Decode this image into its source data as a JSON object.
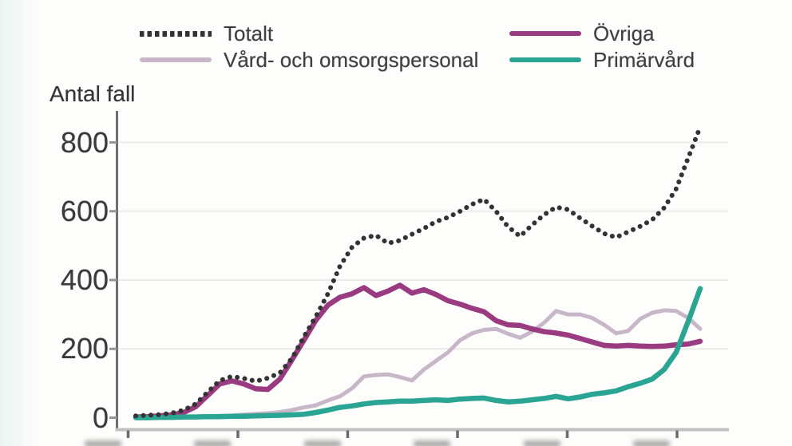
{
  "page": {
    "background": "#fdfdfb"
  },
  "legend": {
    "items": [
      {
        "label": "Totalt",
        "color": "#333333",
        "style": "dotted"
      },
      {
        "label": "Vård- och omsorgspersonal",
        "color": "#c7b7c9",
        "style": "solid"
      },
      {
        "label": "Övriga",
        "color": "#9a3a80",
        "style": "solid"
      },
      {
        "label": "Primärvård",
        "color": "#2aa493",
        "style": "solid"
      }
    ]
  },
  "axis": {
    "title": "Antal fall",
    "ytick_labels": [
      "800",
      "600",
      "400",
      "200",
      "0"
    ]
  },
  "chart_data": {
    "type": "line",
    "title": "Antal fall",
    "xlabel": "",
    "ylabel": "Antal fall",
    "ylim": [
      0,
      870
    ],
    "yticks": [
      0,
      200,
      400,
      600,
      800
    ],
    "grid": "horizontal",
    "legend_position": "top",
    "x_axis_note": "x tick labels cropped out of visible screenshot; 6 evenly spaced ticks shown",
    "series": [
      {
        "name": "Totalt",
        "color": "#333333",
        "line_style": "dotted",
        "values": [
          5,
          7,
          9,
          13,
          22,
          40,
          75,
          108,
          120,
          114,
          106,
          115,
          130,
          172,
          235,
          294,
          360,
          440,
          495,
          522,
          530,
          507,
          515,
          533,
          550,
          570,
          582,
          600,
          620,
          635,
          600,
          555,
          527,
          560,
          590,
          612,
          605,
          580,
          557,
          535,
          524,
          540,
          556,
          575,
          610,
          665,
          755,
          845
        ]
      },
      {
        "name": "Vård- och omsorgspersonal",
        "color": "#c7b7c9",
        "line_style": "solid",
        "values": [
          0,
          1,
          1,
          2,
          2,
          3,
          4,
          5,
          6,
          9,
          11,
          13,
          16,
          22,
          30,
          36,
          50,
          62,
          85,
          120,
          124,
          126,
          118,
          108,
          140,
          165,
          190,
          225,
          245,
          255,
          258,
          244,
          232,
          250,
          276,
          310,
          300,
          300,
          290,
          270,
          245,
          252,
          287,
          305,
          312,
          310,
          290,
          258
        ]
      },
      {
        "name": "Övriga",
        "color": "#9a3a80",
        "line_style": "solid",
        "values": [
          2,
          3,
          5,
          8,
          15,
          32,
          65,
          98,
          107,
          98,
          84,
          82,
          112,
          168,
          225,
          283,
          327,
          350,
          360,
          378,
          355,
          368,
          385,
          362,
          372,
          358,
          340,
          330,
          318,
          308,
          282,
          270,
          268,
          258,
          250,
          246,
          240,
          230,
          220,
          210,
          208,
          210,
          208,
          207,
          208,
          212,
          214,
          222
        ]
      },
      {
        "name": "Primärvård",
        "color": "#2aa493",
        "line_style": "solid",
        "values": [
          0,
          0,
          1,
          1,
          2,
          2,
          3,
          3,
          4,
          4,
          5,
          6,
          7,
          8,
          10,
          15,
          22,
          30,
          34,
          40,
          44,
          46,
          48,
          48,
          50,
          52,
          50,
          54,
          56,
          57,
          50,
          46,
          48,
          52,
          56,
          62,
          55,
          60,
          68,
          72,
          78,
          90,
          100,
          112,
          140,
          190,
          280,
          375
        ]
      }
    ],
    "axis_color": "#6e6e6e",
    "gridline_color": "#ecebe9"
  }
}
